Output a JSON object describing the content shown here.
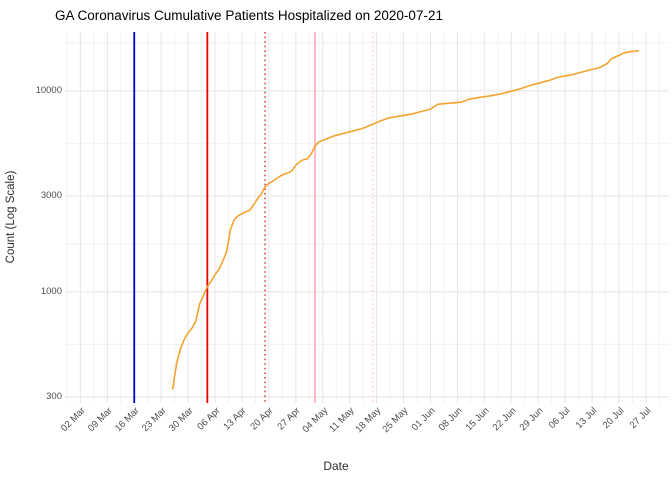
{
  "chart_data": {
    "type": "line",
    "title": "GA Coronavirus Cumulative Patients Hospitalized on 2020-07-21",
    "xlabel": "Date",
    "ylabel": "Count (Log Scale)",
    "y_scale": "log10",
    "grid": "on",
    "legend": "none",
    "y_domain": [
      280,
      19600
    ],
    "x_domain": [
      "2020-02-27",
      "2020-08-02"
    ],
    "y_ticks": [
      {
        "value": 300,
        "label": "300"
      },
      {
        "value": 1000,
        "label": "1000"
      },
      {
        "value": 3000,
        "label": "3000"
      },
      {
        "value": 10000,
        "label": "10000"
      }
    ],
    "y_minor_gridlines": [
      548,
      1732,
      5477,
      17321
    ],
    "x_ticks": [
      {
        "date": "2020-03-02",
        "label": "02 Mar"
      },
      {
        "date": "2020-03-09",
        "label": "09 Mar"
      },
      {
        "date": "2020-03-16",
        "label": "16 Mar"
      },
      {
        "date": "2020-03-23",
        "label": "23 Mar"
      },
      {
        "date": "2020-03-30",
        "label": "30 Mar"
      },
      {
        "date": "2020-04-06",
        "label": "06 Apr"
      },
      {
        "date": "2020-04-13",
        "label": "13 Apr"
      },
      {
        "date": "2020-04-20",
        "label": "20 Apr"
      },
      {
        "date": "2020-04-27",
        "label": "27 Apr"
      },
      {
        "date": "2020-05-04",
        "label": "04 May"
      },
      {
        "date": "2020-05-11",
        "label": "11 May"
      },
      {
        "date": "2020-05-18",
        "label": "18 May"
      },
      {
        "date": "2020-05-25",
        "label": "25 May"
      },
      {
        "date": "2020-06-01",
        "label": "01 Jun"
      },
      {
        "date": "2020-06-08",
        "label": "08 Jun"
      },
      {
        "date": "2020-06-15",
        "label": "15 Jun"
      },
      {
        "date": "2020-06-22",
        "label": "22 Jun"
      },
      {
        "date": "2020-06-29",
        "label": "29 Jun"
      },
      {
        "date": "2020-07-06",
        "label": "06 Jul"
      },
      {
        "date": "2020-07-13",
        "label": "13 Jul"
      },
      {
        "date": "2020-07-20",
        "label": "20 Jul"
      },
      {
        "date": "2020-07-27",
        "label": "27 Jul"
      }
    ],
    "x_minor_offset_days": 3.5,
    "vlines": [
      {
        "date": "2020-03-16",
        "style": "solid",
        "color": "#0000CD"
      },
      {
        "date": "2020-04-04",
        "style": "solid",
        "color": "#E60000"
      },
      {
        "date": "2020-04-19",
        "style": "dotted",
        "color": "#CC2222"
      },
      {
        "date": "2020-05-02",
        "style": "solid",
        "color": "#FFB3C1"
      },
      {
        "date": "2020-05-17",
        "style": "dotted",
        "color": "#FFC4CE"
      }
    ],
    "series": [
      {
        "name": "cumulative-hospitalized",
        "color": "#F2A42E",
        "points": [
          [
            "2020-03-26",
            330
          ],
          [
            "2020-03-27",
            440
          ],
          [
            "2020-03-28",
            520
          ],
          [
            "2020-03-29",
            580
          ],
          [
            "2020-03-30",
            625
          ],
          [
            "2020-03-31",
            660
          ],
          [
            "2020-04-01",
            715
          ],
          [
            "2020-04-02",
            870
          ],
          [
            "2020-04-03",
            960
          ],
          [
            "2020-04-04",
            1060
          ],
          [
            "2020-04-05",
            1130
          ],
          [
            "2020-04-06",
            1220
          ],
          [
            "2020-04-07",
            1290
          ],
          [
            "2020-04-08",
            1420
          ],
          [
            "2020-04-09",
            1580
          ],
          [
            "2020-04-10",
            2040
          ],
          [
            "2020-04-11",
            2290
          ],
          [
            "2020-04-12",
            2390
          ],
          [
            "2020-04-13",
            2450
          ],
          [
            "2020-04-14",
            2500
          ],
          [
            "2020-04-15",
            2540
          ],
          [
            "2020-04-16",
            2700
          ],
          [
            "2020-04-17",
            2900
          ],
          [
            "2020-04-18",
            3060
          ],
          [
            "2020-04-19",
            3330
          ],
          [
            "2020-04-20",
            3460
          ],
          [
            "2020-04-21",
            3550
          ],
          [
            "2020-04-22",
            3660
          ],
          [
            "2020-04-23",
            3770
          ],
          [
            "2020-04-24",
            3850
          ],
          [
            "2020-04-25",
            3910
          ],
          [
            "2020-04-26",
            4000
          ],
          [
            "2020-04-27",
            4260
          ],
          [
            "2020-04-28",
            4440
          ],
          [
            "2020-04-29",
            4540
          ],
          [
            "2020-04-30",
            4590
          ],
          [
            "2020-05-01",
            4850
          ],
          [
            "2020-05-02",
            5320
          ],
          [
            "2020-05-03",
            5570
          ],
          [
            "2020-05-05",
            5760
          ],
          [
            "2020-05-07",
            5970
          ],
          [
            "2020-05-09",
            6100
          ],
          [
            "2020-05-11",
            6250
          ],
          [
            "2020-05-14",
            6460
          ],
          [
            "2020-05-16",
            6690
          ],
          [
            "2020-05-19",
            7080
          ],
          [
            "2020-05-21",
            7310
          ],
          [
            "2020-05-24",
            7480
          ],
          [
            "2020-05-27",
            7650
          ],
          [
            "2020-05-29",
            7830
          ],
          [
            "2020-06-01",
            8110
          ],
          [
            "2020-06-03",
            8570
          ],
          [
            "2020-06-06",
            8670
          ],
          [
            "2020-06-09",
            8770
          ],
          [
            "2020-06-11",
            9080
          ],
          [
            "2020-06-14",
            9290
          ],
          [
            "2020-06-16",
            9400
          ],
          [
            "2020-06-19",
            9620
          ],
          [
            "2020-06-21",
            9840
          ],
          [
            "2020-06-24",
            10170
          ],
          [
            "2020-06-27",
            10640
          ],
          [
            "2020-06-29",
            10890
          ],
          [
            "2020-07-02",
            11270
          ],
          [
            "2020-07-04",
            11660
          ],
          [
            "2020-07-07",
            11940
          ],
          [
            "2020-07-09",
            12190
          ],
          [
            "2020-07-12",
            12620
          ],
          [
            "2020-07-15",
            13060
          ],
          [
            "2020-07-17",
            13680
          ],
          [
            "2020-07-18",
            14440
          ],
          [
            "2020-07-20",
            15000
          ],
          [
            "2020-07-21",
            15340
          ],
          [
            "2020-07-22",
            15540
          ],
          [
            "2020-07-23",
            15640
          ],
          [
            "2020-07-25",
            15800
          ]
        ]
      }
    ]
  }
}
